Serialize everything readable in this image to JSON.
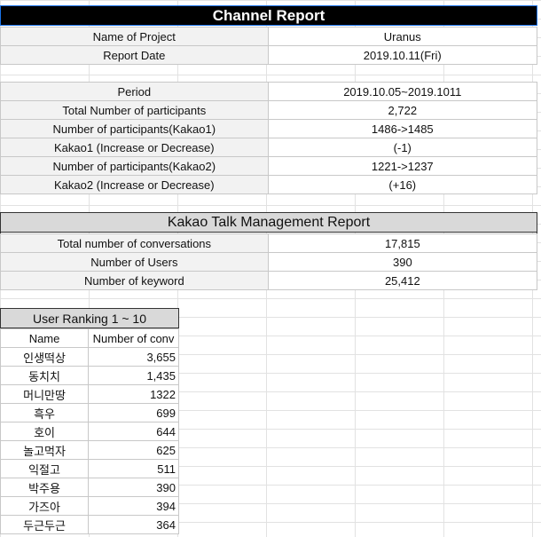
{
  "title": "Channel Report",
  "project": {
    "rows": [
      {
        "label": "Name of Project",
        "value": "Uranus"
      },
      {
        "label": "Report Date",
        "value": "2019.10.11(Fri)"
      }
    ]
  },
  "period": {
    "rows": [
      {
        "label": "Period",
        "value": "2019.10.05~2019.1011"
      },
      {
        "label": "Total Number of participants",
        "value": "2,722"
      },
      {
        "label": "Number of participants(Kakao1)",
        "value": "1486->1485"
      },
      {
        "label": "Kakao1 (Increase or Decrease)",
        "value": "(-1)"
      },
      {
        "label": "Number of participants(Kakao2)",
        "value": "1221->1237"
      },
      {
        "label": "Kakao2 (Increase or Decrease)",
        "value": "(+16)"
      }
    ]
  },
  "management": {
    "title": "Kakao Talk Management Report",
    "rows": [
      {
        "label": "Total number of conversations",
        "value": "17,815"
      },
      {
        "label": "Number of Users",
        "value": "390"
      },
      {
        "label": "Number of keyword",
        "value": "25,412"
      }
    ]
  },
  "ranking": {
    "title": "User Ranking 1 ~ 10",
    "col_name": "Name",
    "col_conv": "Number of conv",
    "rows": [
      {
        "name": "인생떡상",
        "conv": "3,655"
      },
      {
        "name": "동치치",
        "conv": "1,435"
      },
      {
        "name": "머니만땅",
        "conv": "1322"
      },
      {
        "name": "흑우",
        "conv": "699"
      },
      {
        "name": "호이",
        "conv": "644"
      },
      {
        "name": "놀고먹자",
        "conv": "625"
      },
      {
        "name": "익절고",
        "conv": "511"
      },
      {
        "name": "박주용",
        "conv": "390"
      },
      {
        "name": "가즈아",
        "conv": "394"
      },
      {
        "name": "두근두근",
        "conv": "364"
      }
    ]
  }
}
